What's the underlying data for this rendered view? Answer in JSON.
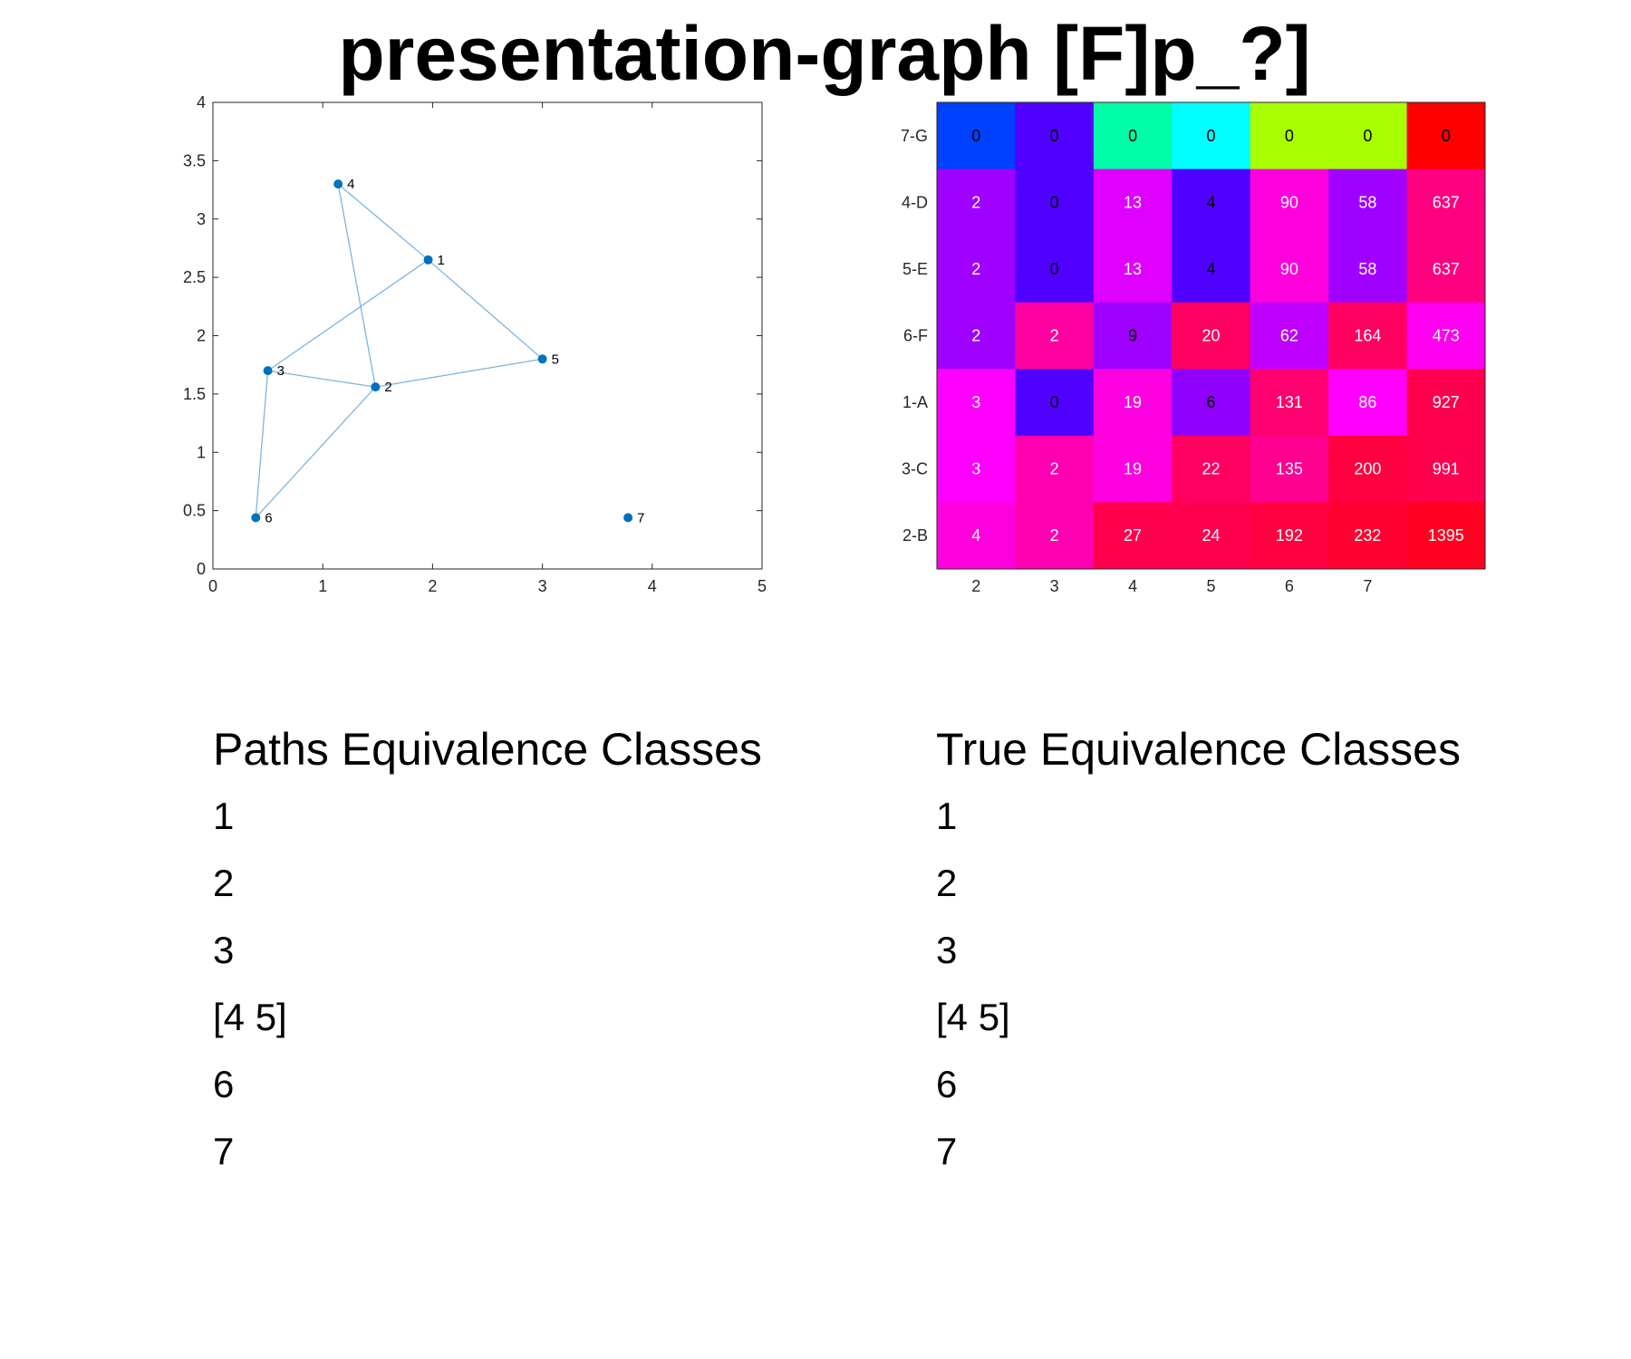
{
  "title": "presentation-graph [F]p_?]",
  "chart_data": [
    {
      "type": "scatter",
      "xlim": [
        0,
        5
      ],
      "ylim": [
        0,
        4
      ],
      "xticks": [
        "0",
        "1",
        "2",
        "3",
        "4",
        "5"
      ],
      "yticks": [
        "0",
        "0.5",
        "1",
        "1.5",
        "2",
        "2.5",
        "3",
        "3.5",
        "4"
      ],
      "grid": false,
      "node_color": "#0072BD",
      "edge_color": "#7FB5E0",
      "nodes": [
        {
          "label": "1",
          "x": 1.96,
          "y": 2.65
        },
        {
          "label": "2",
          "x": 1.48,
          "y": 1.56
        },
        {
          "label": "3",
          "x": 0.5,
          "y": 1.7
        },
        {
          "label": "4",
          "x": 1.14,
          "y": 3.3
        },
        {
          "label": "5",
          "x": 3.0,
          "y": 1.8
        },
        {
          "label": "6",
          "x": 0.39,
          "y": 0.44
        },
        {
          "label": "7",
          "x": 3.78,
          "y": 0.44
        }
      ],
      "edges": [
        [
          "4",
          "1"
        ],
        [
          "4",
          "2"
        ],
        [
          "1",
          "3"
        ],
        [
          "1",
          "5"
        ],
        [
          "3",
          "2"
        ],
        [
          "3",
          "6"
        ],
        [
          "2",
          "5"
        ],
        [
          "2",
          "6"
        ]
      ]
    },
    {
      "type": "heatmap",
      "x_labels": [
        "2",
        "3",
        "4",
        "5",
        "6",
        "7",
        ""
      ],
      "y_labels": [
        "7-G",
        "4-D",
        "5-E",
        "6-F",
        "1-A",
        "3-C",
        "2-B"
      ],
      "values": [
        [
          0,
          0,
          0,
          0,
          0,
          0,
          0
        ],
        [
          2,
          0,
          13,
          4,
          90,
          58,
          637
        ],
        [
          2,
          0,
          13,
          4,
          90,
          58,
          637
        ],
        [
          2,
          2,
          9,
          20,
          62,
          164,
          473
        ],
        [
          3,
          0,
          19,
          6,
          131,
          86,
          927
        ],
        [
          3,
          2,
          19,
          22,
          135,
          200,
          991
        ],
        [
          4,
          2,
          27,
          24,
          192,
          232,
          1395
        ]
      ],
      "cell_colors": [
        [
          "#0040FF",
          "#5000FF",
          "#00FFA8",
          "#00FFFF",
          "#A8FF00",
          "#A8FF00",
          "#FF0000"
        ],
        [
          "#A000FF",
          "#5000FF",
          "#E000FF",
          "#5000FF",
          "#FF00DD",
          "#A000FF",
          "#FF0080"
        ],
        [
          "#A000FF",
          "#5000FF",
          "#E000FF",
          "#5000FF",
          "#FF00DD",
          "#A000FF",
          "#FF0080"
        ],
        [
          "#A000FF",
          "#FF00A0",
          "#A000FF",
          "#FF0060",
          "#C000FF",
          "#FF0060",
          "#FF00F0"
        ],
        [
          "#FF00FF",
          "#5000FF",
          "#FF00E0",
          "#9000FF",
          "#FF0070",
          "#FF00FF",
          "#FF0050"
        ],
        [
          "#FF00FF",
          "#FF00B0",
          "#FF00E0",
          "#FF0060",
          "#FF0090",
          "#FF0040",
          "#FF0050"
        ],
        [
          "#FF00DD",
          "#FF00B0",
          "#FF0050",
          "#FF0050",
          "#FF0040",
          "#FF0030",
          "#FF0020"
        ]
      ],
      "text_colors": [
        [
          "#000000",
          "#000000",
          "#000000",
          "#000000",
          "#000000",
          "#000000",
          "#000000"
        ],
        [
          "#ffffff",
          "#000000",
          "#ffffff",
          "#000000",
          "#ffffff",
          "#ffffff",
          "#ffffff"
        ],
        [
          "#ffffff",
          "#000000",
          "#ffffff",
          "#000000",
          "#ffffff",
          "#ffffff",
          "#ffffff"
        ],
        [
          "#ffffff",
          "#ffffff",
          "#000000",
          "#ffffff",
          "#ffffff",
          "#ffffff",
          "#ffffff"
        ],
        [
          "#ffffff",
          "#000000",
          "#ffffff",
          "#000000",
          "#ffffff",
          "#ffffff",
          "#ffffff"
        ],
        [
          "#ffffff",
          "#ffffff",
          "#ffffff",
          "#ffffff",
          "#ffffff",
          "#ffffff",
          "#ffffff"
        ],
        [
          "#ffffff",
          "#ffffff",
          "#ffffff",
          "#ffffff",
          "#ffffff",
          "#ffffff",
          "#ffffff"
        ]
      ]
    }
  ],
  "paths_classes": {
    "heading": "Paths Equivalence Classes",
    "items": [
      "1",
      "2",
      "3",
      "[4 5]",
      "6",
      "7"
    ]
  },
  "true_classes": {
    "heading": "True Equivalence Classes",
    "items": [
      "1",
      "2",
      "3",
      "[4 5]",
      "6",
      "7"
    ]
  }
}
